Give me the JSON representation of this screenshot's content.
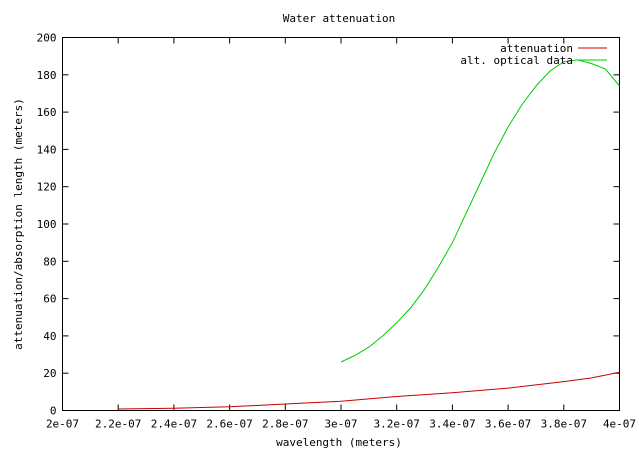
{
  "chart_data": {
    "type": "line",
    "title": "Water attenuation",
    "xlabel": "wavelength (meters)",
    "ylabel": "attenuation/absorption length (meters)",
    "xlim": [
      2e-07,
      4e-07
    ],
    "ylim": [
      0,
      200
    ],
    "x_ticks": [
      2e-07,
      2.2e-07,
      2.4e-07,
      2.6e-07,
      2.8e-07,
      3e-07,
      3.2e-07,
      3.4e-07,
      3.6e-07,
      3.8e-07,
      4e-07
    ],
    "x_tick_labels": [
      "2e-07",
      "2.2e-07",
      "2.4e-07",
      "2.6e-07",
      "2.8e-07",
      "3e-07",
      "3.2e-07",
      "3.4e-07",
      "3.6e-07",
      "3.8e-07",
      "4e-07"
    ],
    "y_ticks": [
      0,
      20,
      40,
      60,
      80,
      100,
      120,
      140,
      160,
      180,
      200
    ],
    "y_tick_labels": [
      "0",
      "20",
      "40",
      "60",
      "80",
      "100",
      "120",
      "140",
      "160",
      "180",
      "200"
    ],
    "grid": false,
    "legend_position": "top-right",
    "series": [
      {
        "name": "attenuation",
        "color": "#cc0000",
        "x": [
          2.2e-07,
          2.4e-07,
          2.6e-07,
          2.8e-07,
          3e-07,
          3.2e-07,
          3.4e-07,
          3.6e-07,
          3.8e-07,
          3.9e-07,
          4e-07
        ],
        "y": [
          0.8,
          1.2,
          2.0,
          3.5,
          5.0,
          7.5,
          9.5,
          12.0,
          15.5,
          17.5,
          20.5
        ]
      },
      {
        "name": "alt. optical data",
        "color": "#00cc00",
        "x": [
          3e-07,
          3.05e-07,
          3.1e-07,
          3.15e-07,
          3.2e-07,
          3.25e-07,
          3.3e-07,
          3.35e-07,
          3.4e-07,
          3.45e-07,
          3.5e-07,
          3.55e-07,
          3.6e-07,
          3.65e-07,
          3.7e-07,
          3.75e-07,
          3.8e-07,
          3.85e-07,
          3.9e-07,
          3.95e-07,
          4e-07
        ],
        "y": [
          26,
          29.5,
          34,
          40,
          47,
          55,
          65,
          77,
          90,
          106,
          122,
          138,
          152,
          164,
          174,
          182,
          187,
          188,
          186,
          183,
          174
        ]
      }
    ]
  }
}
